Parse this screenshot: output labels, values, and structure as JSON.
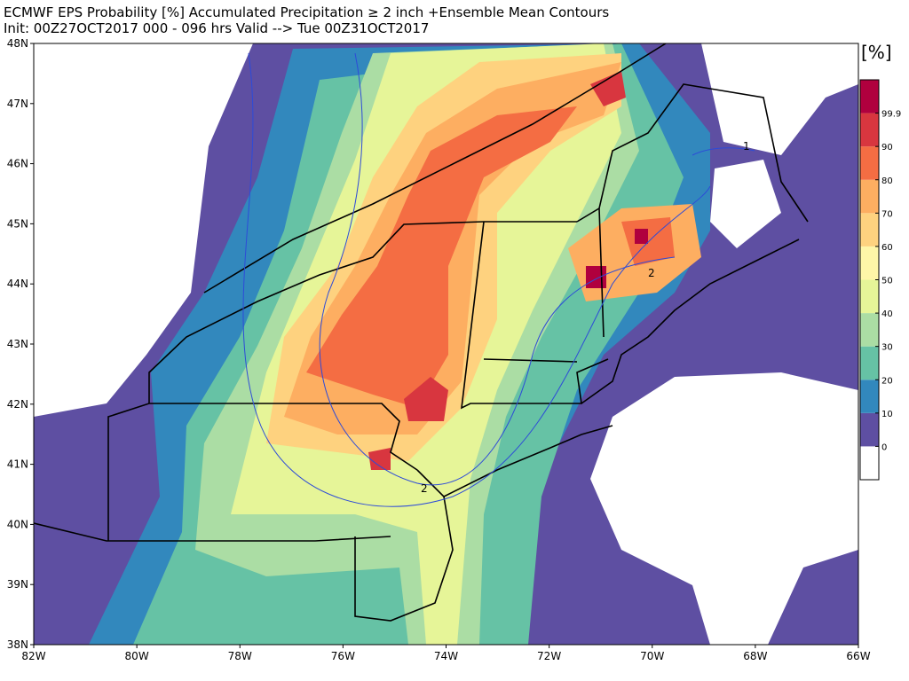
{
  "header": {
    "title": "ECMWF EPS Probability [%] Accumulated Precipitation ≥ 2 inch  +Ensemble Mean Contours",
    "subtitle": "Init: 00Z27OCT2017   000 - 096 hrs Valid --> Tue 00Z31OCT2017"
  },
  "map": {
    "lat_labels": [
      "48N",
      "47N",
      "46N",
      "45N",
      "44N",
      "43N",
      "42N",
      "41N",
      "40N",
      "39N",
      "38N"
    ],
    "lon_labels": [
      "82W",
      "80W",
      "78W",
      "76W",
      "74W",
      "72W",
      "70W",
      "68W",
      "66W"
    ],
    "contour_labels": [
      "1",
      "2",
      "2"
    ]
  },
  "colorbar": {
    "unit": "[%]",
    "ticks": [
      0,
      10,
      20,
      30,
      40,
      50,
      60,
      70,
      80,
      90,
      99.9
    ],
    "colors": [
      "#ffffff",
      "#5e4fa2",
      "#3288bd",
      "#66c2a5",
      "#abdda4",
      "#e6f598",
      "#fef6a8",
      "#fed27f",
      "#fdae61",
      "#f46d43",
      "#d8363f",
      "#b0003e"
    ]
  }
}
